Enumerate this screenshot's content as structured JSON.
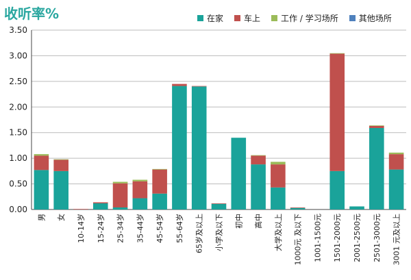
{
  "chart_data": {
    "type": "bar",
    "stacked": true,
    "title": "收听率%",
    "xlabel": "",
    "ylabel": "",
    "ylim": [
      0,
      3.5
    ],
    "yticks": [
      "0.00",
      "0.50",
      "1.00",
      "1.50",
      "2.00",
      "2.50",
      "3.00",
      "3.50"
    ],
    "grid": true,
    "legend_position": "top-right",
    "categories": [
      "男",
      "女",
      "10-14岁",
      "15-24岁",
      "25-34岁",
      "35-44岁",
      "45-54岁",
      "55-64岁",
      "65岁及以上",
      "小学及以下",
      "初中",
      "高中",
      "大学及以上",
      "1000元 及以下",
      "1001-1500元",
      "1501-2000元",
      "2001-2500元",
      "2501-3000元",
      "3001 元及以上"
    ],
    "series": [
      {
        "name": "在家",
        "color": "#1aa39a",
        "values": [
          0.77,
          0.75,
          0.0,
          0.12,
          0.04,
          0.22,
          0.31,
          2.41,
          2.4,
          0.11,
          1.4,
          0.88,
          0.43,
          0.03,
          0.0,
          0.75,
          0.06,
          1.59,
          0.78
        ]
      },
      {
        "name": "车上",
        "color": "#c0504d",
        "values": [
          0.28,
          0.22,
          0.01,
          0.02,
          0.47,
          0.33,
          0.47,
          0.04,
          0.01,
          0.01,
          0.0,
          0.17,
          0.45,
          0.01,
          0.0,
          2.29,
          0.0,
          0.04,
          0.3
        ]
      },
      {
        "name": "工作 / 学习场所",
        "color": "#9bbb59",
        "values": [
          0.03,
          0.01,
          0.0,
          0.0,
          0.03,
          0.03,
          0.01,
          0.0,
          0.0,
          0.0,
          0.0,
          0.01,
          0.05,
          0.0,
          0.0,
          0.01,
          0.0,
          0.01,
          0.03
        ]
      },
      {
        "name": "其他场所",
        "color": "#4f81bd",
        "values": [
          0,
          0,
          0,
          0,
          0,
          0,
          0,
          0,
          0,
          0,
          0,
          0,
          0,
          0,
          0,
          0,
          0,
          0,
          0
        ]
      }
    ]
  }
}
